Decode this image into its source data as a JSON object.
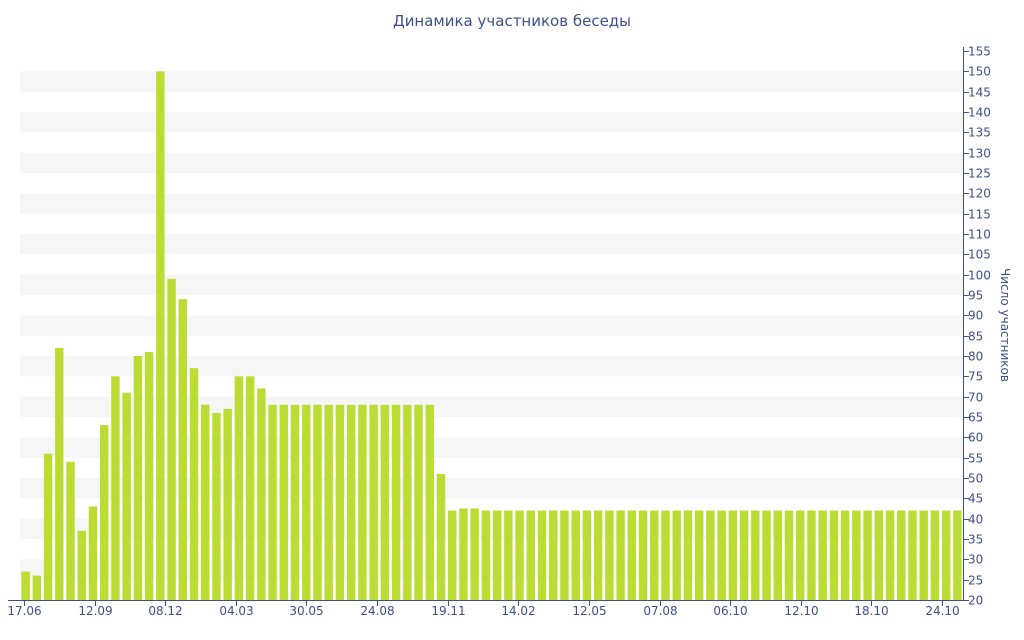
{
  "chart_data": {
    "type": "bar",
    "title": "Динамика участников беседы",
    "xlabel": "",
    "ylabel": "Число участников",
    "y_axis_position": "right",
    "ylim": [
      20,
      155
    ],
    "ytick_step": 5,
    "grid": "alternating horizontal bands",
    "bar_color": "#bbdd33",
    "band_color": "#f6f6f6",
    "axis_color": "#3e4f8a",
    "x_tick_labels": [
      "17.06",
      "12.09",
      "08.12",
      "04.03",
      "30.05",
      "24.08",
      "19.11",
      "14.02",
      "12.05",
      "07.08",
      "06.10",
      "12.10",
      "18.10",
      "24.10"
    ],
    "values": [
      27,
      26,
      56,
      82,
      54,
      37,
      43,
      63,
      75,
      71,
      80,
      81,
      150,
      99,
      94,
      77,
      68,
      66,
      67,
      75,
      75,
      72,
      68,
      68,
      68,
      68,
      68,
      68,
      68,
      68,
      68,
      68,
      68,
      68,
      68,
      68,
      68,
      51,
      42,
      42.5,
      42.5,
      42,
      42,
      42,
      42,
      42,
      42,
      42,
      42,
      42,
      42,
      42,
      42,
      42,
      42,
      42,
      42,
      42,
      42,
      42,
      42,
      42,
      42,
      42,
      42,
      42,
      42,
      42,
      42,
      42,
      42,
      42,
      42,
      42,
      42,
      42,
      42,
      42,
      42,
      42,
      42,
      42,
      42,
      42
    ]
  }
}
